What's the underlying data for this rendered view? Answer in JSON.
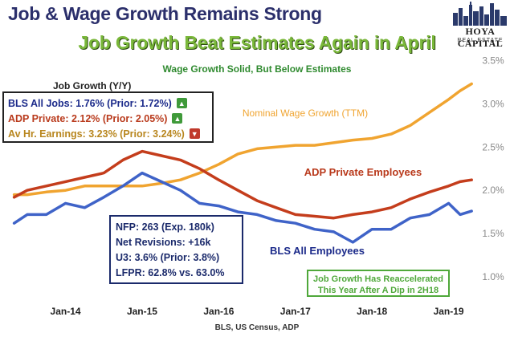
{
  "header": {
    "title": "Job & Wage Growth Remains Strong",
    "subtitle": "Job Growth Beat Estimates Again in April",
    "subsubtitle": "Wage Growth Solid, But Below Estimates"
  },
  "logo": {
    "name": "HOYA CAPITAL",
    "sub": "REAL ESTATE"
  },
  "job_growth_box": {
    "title": "Job Growth (Y/Y)",
    "rows": [
      {
        "text": "BLS All Jobs: 1.76% (Prior: 1.72%)",
        "color": "#1b2a8a",
        "direction": "up"
      },
      {
        "text": "ADP Private: 2.12% (Prior: 2.05%)",
        "color": "#b93a1c",
        "direction": "up"
      },
      {
        "text": "Av Hr. Earnings: 3.23% (Prior: 3.24%)",
        "color": "#b8861e",
        "direction": "down"
      }
    ],
    "icons": {
      "up": "up-triangle-icon",
      "down": "down-triangle-icon"
    }
  },
  "stats_box": {
    "rows": [
      "NFP: 263 (Exp. 180k)",
      "Net Revisions: +16k",
      "U3: 3.6% (Prior: 3.8%)",
      "LFPR: 62.8% vs. 63.0%"
    ]
  },
  "note_box": {
    "lines": [
      "Job Growth Has Reaccelerated",
      "This Year After A Dip in 2H18"
    ]
  },
  "source": "BLS, US Census, ADP",
  "chart_data": {
    "type": "line",
    "xlabel": "",
    "ylabel": "",
    "x_ticks": [
      "Jan-14",
      "Jan-15",
      "Jan-16",
      "Jan-17",
      "Jan-18",
      "Jan-19"
    ],
    "x_tick_values": [
      2014.0,
      2015.0,
      2016.0,
      2017.0,
      2018.0,
      2019.0
    ],
    "xlim": [
      2013.25,
      2019.35
    ],
    "ylim": [
      0.75,
      3.55
    ],
    "y_ticks": [
      "1.0%",
      "1.5%",
      "2.0%",
      "2.5%",
      "3.0%",
      "3.5%"
    ],
    "y_tick_values": [
      1.0,
      1.5,
      2.0,
      2.5,
      3.0,
      3.5
    ],
    "grid": false,
    "series": [
      {
        "name": "Nominal Wage Growth (TTM)",
        "color": "#f0a430",
        "x": [
          2013.33,
          2013.5,
          2013.75,
          2014.0,
          2014.25,
          2014.5,
          2014.75,
          2015.0,
          2015.25,
          2015.5,
          2015.75,
          2016.0,
          2016.25,
          2016.5,
          2016.75,
          2017.0,
          2017.25,
          2017.5,
          2017.75,
          2018.0,
          2018.25,
          2018.5,
          2018.75,
          2019.0,
          2019.15,
          2019.3
        ],
        "y": [
          1.95,
          1.95,
          1.98,
          2.0,
          2.05,
          2.05,
          2.05,
          2.05,
          2.08,
          2.12,
          2.2,
          2.3,
          2.42,
          2.48,
          2.5,
          2.52,
          2.52,
          2.55,
          2.58,
          2.6,
          2.65,
          2.75,
          2.9,
          3.05,
          3.15,
          3.23
        ]
      },
      {
        "name": "ADP Private Employees",
        "color": "#c43d1c",
        "x": [
          2013.33,
          2013.5,
          2013.75,
          2014.0,
          2014.25,
          2014.5,
          2014.75,
          2015.0,
          2015.25,
          2015.5,
          2015.75,
          2016.0,
          2016.25,
          2016.5,
          2016.75,
          2017.0,
          2017.25,
          2017.5,
          2017.75,
          2018.0,
          2018.25,
          2018.5,
          2018.75,
          2019.0,
          2019.15,
          2019.3
        ],
        "y": [
          1.92,
          2.0,
          2.05,
          2.1,
          2.15,
          2.2,
          2.35,
          2.45,
          2.4,
          2.35,
          2.25,
          2.12,
          2.0,
          1.88,
          1.8,
          1.72,
          1.7,
          1.68,
          1.72,
          1.75,
          1.8,
          1.9,
          1.98,
          2.05,
          2.1,
          2.12
        ]
      },
      {
        "name": "BLS All Employees",
        "color": "#3f63c8",
        "x": [
          2013.33,
          2013.5,
          2013.75,
          2014.0,
          2014.25,
          2014.5,
          2014.75,
          2015.0,
          2015.25,
          2015.5,
          2015.75,
          2016.0,
          2016.25,
          2016.5,
          2016.75,
          2017.0,
          2017.25,
          2017.5,
          2017.75,
          2018.0,
          2018.25,
          2018.5,
          2018.75,
          2019.0,
          2019.15,
          2019.3
        ],
        "y": [
          1.62,
          1.72,
          1.72,
          1.85,
          1.8,
          1.92,
          2.05,
          2.2,
          2.1,
          2.0,
          1.85,
          1.82,
          1.75,
          1.72,
          1.65,
          1.62,
          1.55,
          1.52,
          1.4,
          1.55,
          1.55,
          1.68,
          1.72,
          1.85,
          1.72,
          1.76
        ]
      }
    ],
    "annotations": [
      {
        "text": "Nominal Wage Growth (TTM)",
        "color": "#f0a430"
      },
      {
        "text": "ADP Private Employees",
        "color": "#b93a1c"
      },
      {
        "text": "BLS All Employees",
        "color": "#1b2a8a"
      }
    ]
  }
}
